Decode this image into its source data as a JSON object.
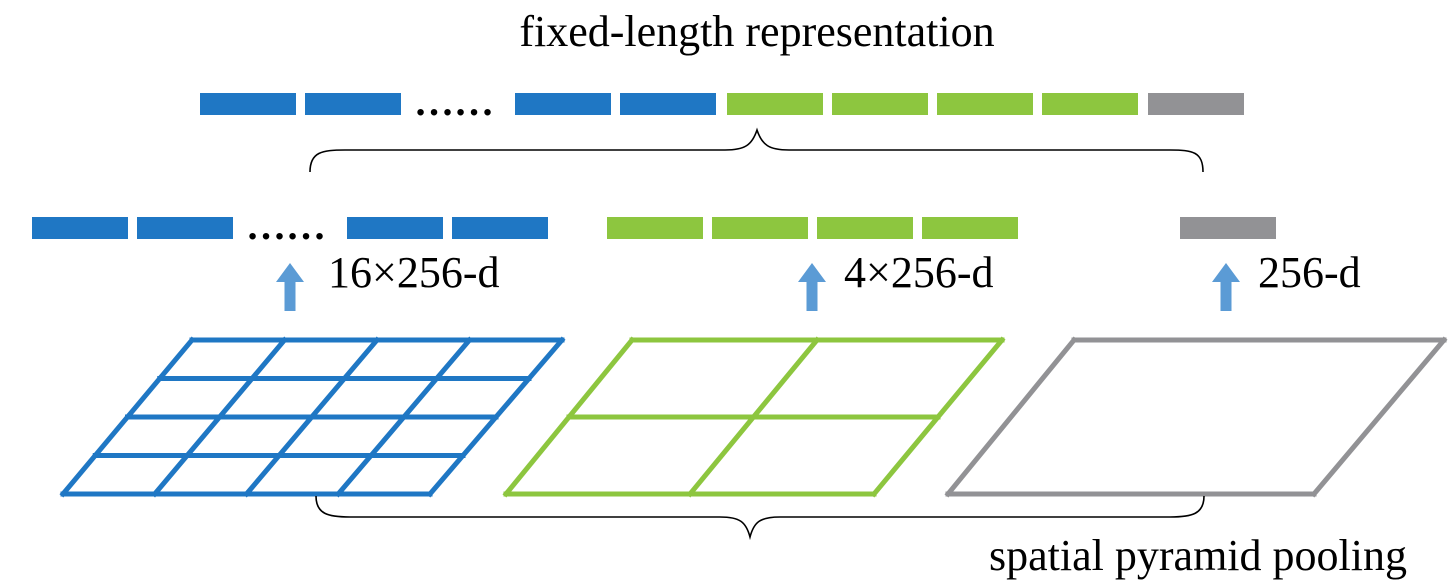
{
  "title": "fixed-length representation",
  "footer_label": "spatial pyramid pooling",
  "ellipsis": "……",
  "colors": {
    "blue": "#1f77c4",
    "green": "#8dc63f",
    "gray": "#929295",
    "arrow": "#5b9bd5",
    "text": "#000000"
  },
  "levels": [
    {
      "name": "16-bin level",
      "color_key": "blue",
      "grid": "4x4",
      "dim_label": "16×256-d",
      "bins": 16
    },
    {
      "name": "4-bin level",
      "color_key": "green",
      "grid": "2x2",
      "dim_label": "4×256-d",
      "bins": 4
    },
    {
      "name": "1-bin level",
      "color_key": "gray",
      "grid": "1x1",
      "dim_label": "256-d",
      "bins": 1
    }
  ]
}
